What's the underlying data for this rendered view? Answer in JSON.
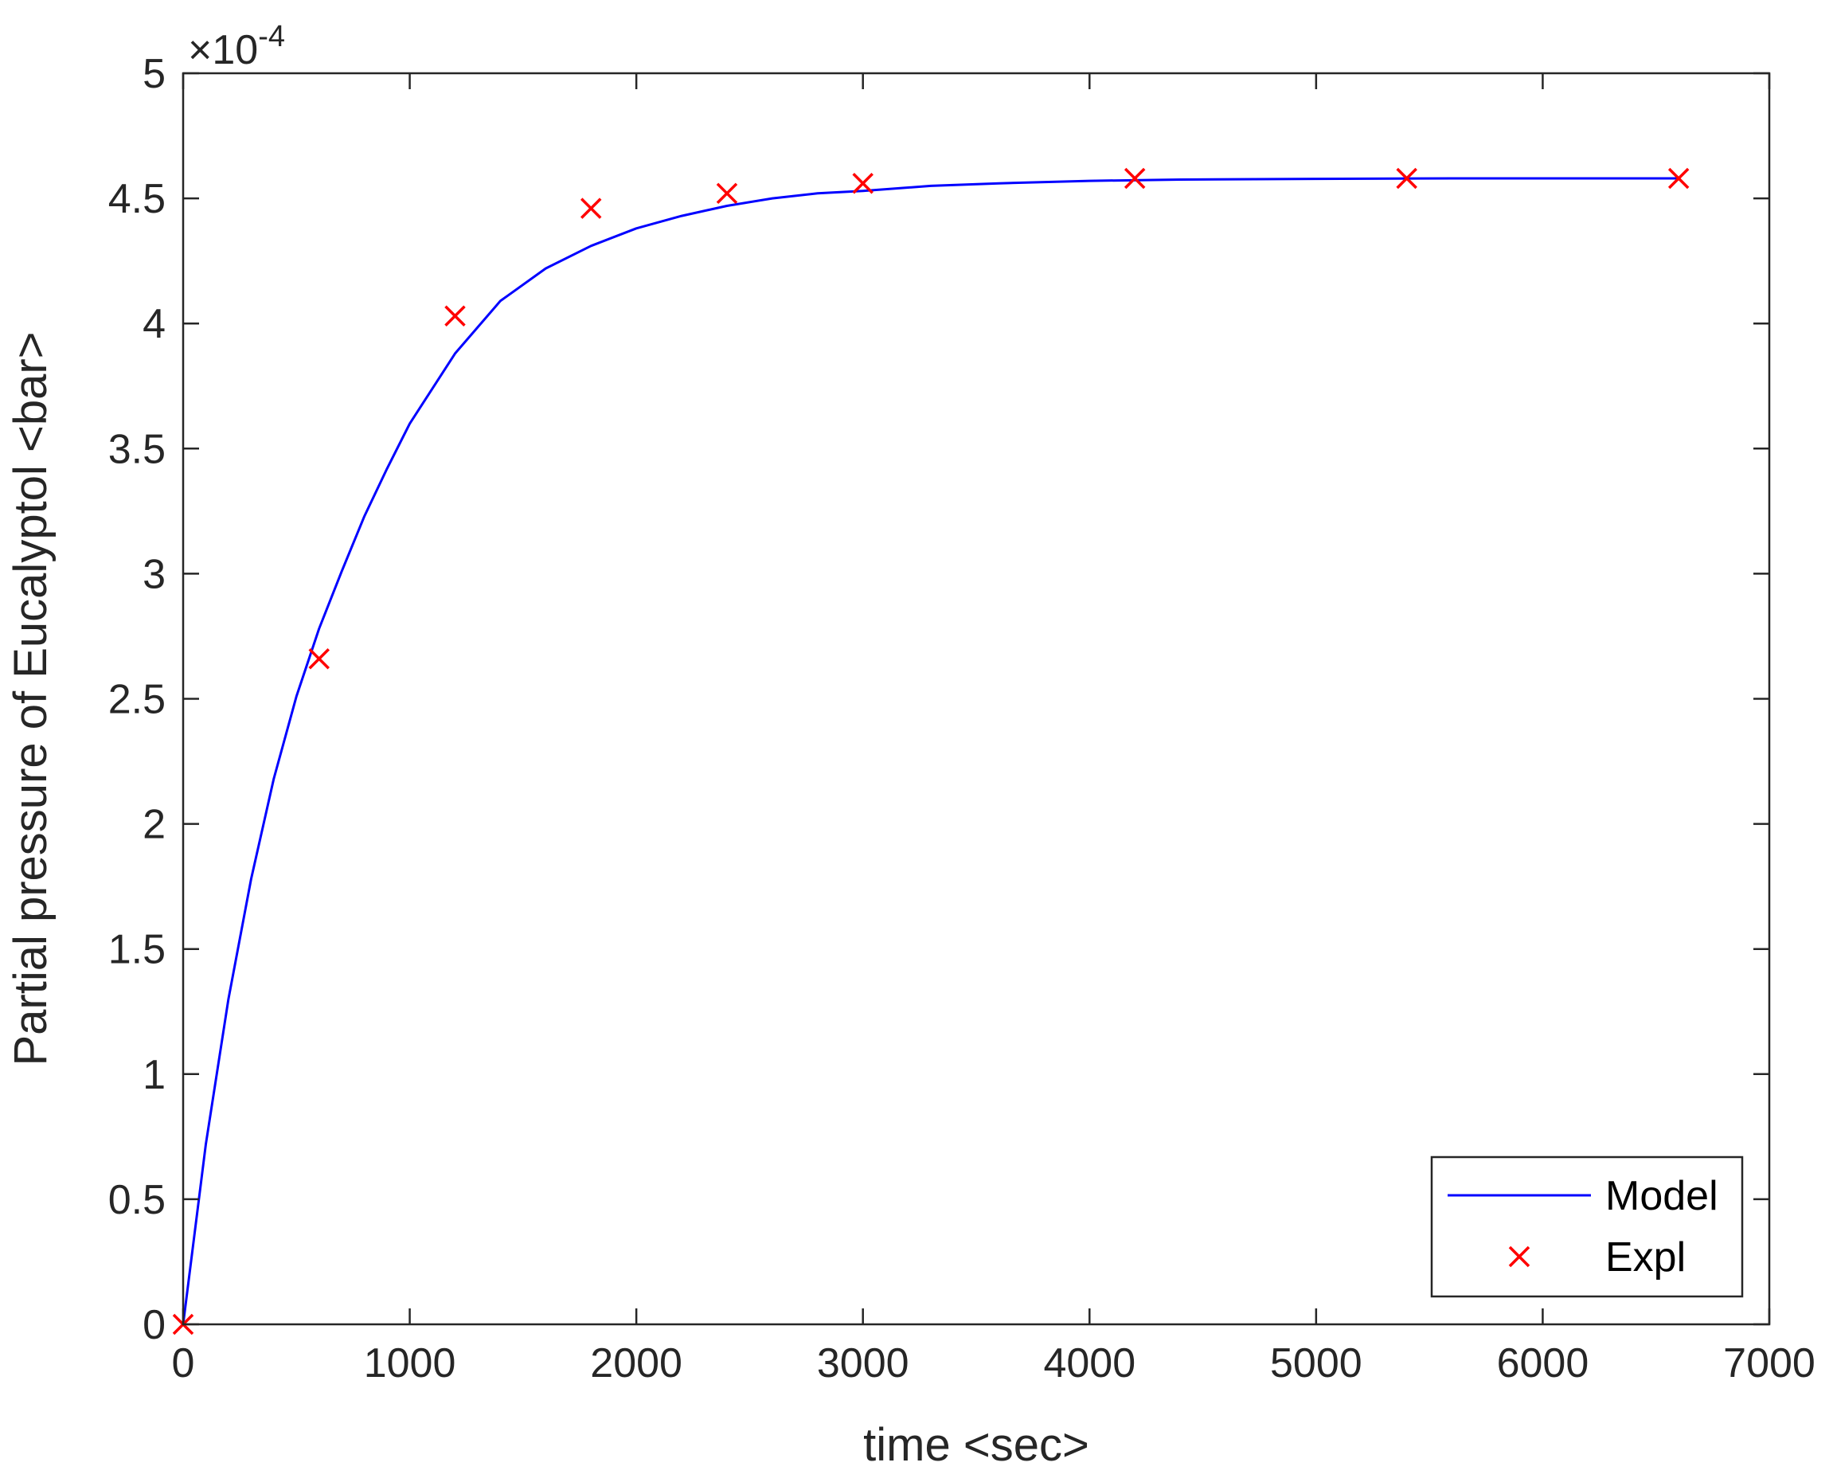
{
  "chart_data": {
    "type": "line",
    "xlabel": "time <sec>",
    "ylabel": "Partial pressure of Eucalyptol <bar>",
    "y_multiplier_text": "×10",
    "y_multiplier_exponent": "-4",
    "xlim": [
      0,
      7000
    ],
    "ylim": [
      0,
      5
    ],
    "x_ticks": [
      0,
      1000,
      2000,
      3000,
      4000,
      5000,
      6000,
      7000
    ],
    "x_tick_labels": [
      "0",
      "1000",
      "2000",
      "3000",
      "4000",
      "5000",
      "6000",
      "7000"
    ],
    "y_ticks": [
      0,
      0.5,
      1,
      1.5,
      2,
      2.5,
      3,
      3.5,
      4,
      4.5,
      5
    ],
    "y_tick_labels": [
      "0",
      "0.5",
      "1",
      "1.5",
      "2",
      "2.5",
      "3",
      "3.5",
      "4",
      "4.5",
      "5"
    ],
    "grid": false,
    "legend_position": "bottom-right",
    "series": [
      {
        "name": "Model",
        "style": "line",
        "color": "#0000ff",
        "x": [
          0,
          100,
          200,
          300,
          400,
          500,
          600,
          700,
          800,
          900,
          1000,
          1200,
          1400,
          1600,
          1800,
          2000,
          2200,
          2400,
          2600,
          2800,
          3000,
          3300,
          3600,
          4000,
          4400,
          5000,
          5600,
          6000,
          6600
        ],
        "y": [
          0,
          0.72,
          1.3,
          1.78,
          2.18,
          2.51,
          2.78,
          3.01,
          3.23,
          3.42,
          3.6,
          3.88,
          4.09,
          4.22,
          4.31,
          4.38,
          4.43,
          4.47,
          4.5,
          4.52,
          4.53,
          4.55,
          4.56,
          4.57,
          4.575,
          4.578,
          4.58,
          4.58,
          4.58
        ]
      },
      {
        "name": "Expl",
        "style": "markers",
        "marker": "x",
        "color": "#ff0000",
        "x": [
          0,
          600,
          1200,
          1800,
          2400,
          3000,
          4200,
          5400,
          6600
        ],
        "y": [
          0,
          2.66,
          4.03,
          4.46,
          4.52,
          4.56,
          4.58,
          4.58,
          4.58
        ]
      }
    ]
  }
}
